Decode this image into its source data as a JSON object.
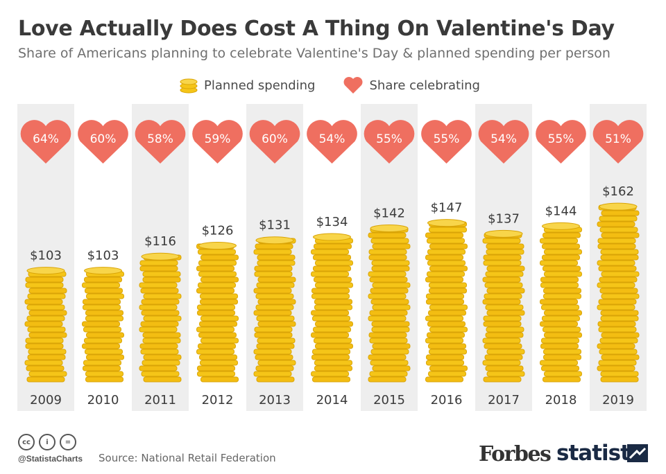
{
  "title": "Love Actually Does Cost A Thing On Valentine's Day",
  "subtitle": "Share of Americans planning to celebrate Valentine's Day & planned spending per person",
  "legend": {
    "spending_label": "Planned spending",
    "share_label": "Share celebrating"
  },
  "colors": {
    "coin": "#f5c518",
    "coin_edge": "#d9a406",
    "heart": "#ef6f60",
    "band": "#eeeeee",
    "text": "#3a3a3a"
  },
  "chart_data": {
    "type": "bar",
    "categories": [
      "2009",
      "2010",
      "2011",
      "2012",
      "2013",
      "2014",
      "2015",
      "2016",
      "2017",
      "2018",
      "2019"
    ],
    "series": [
      {
        "name": "Planned spending",
        "values": [
          103,
          103,
          116,
          126,
          131,
          134,
          142,
          147,
          137,
          144,
          162
        ],
        "value_labels": [
          "$103",
          "$103",
          "$116",
          "$126",
          "$131",
          "$134",
          "$142",
          "$147",
          "$137",
          "$144",
          "$162"
        ]
      },
      {
        "name": "Share celebrating",
        "values": [
          64,
          60,
          58,
          59,
          60,
          54,
          55,
          55,
          54,
          55,
          51
        ],
        "value_labels": [
          "64%",
          "60%",
          "58%",
          "59%",
          "60%",
          "54%",
          "55%",
          "55%",
          "54%",
          "55%",
          "51%"
        ]
      }
    ],
    "title": "Love Actually Does Cost A Thing On Valentine's Day",
    "subtitle": "Share of Americans planning to celebrate Valentine's Day & planned spending per person",
    "xlabel": "",
    "ylabel": "",
    "legend_position": "top",
    "grid": false
  },
  "footer": {
    "handle": "@StatistaCharts",
    "source": "Source: National Retail Federation",
    "forbes": "Forbes",
    "statista": "statista"
  },
  "icons": [
    "cc-icon",
    "by-icon",
    "nd-icon",
    "coin-stack-icon",
    "heart-icon",
    "statista-logo-icon"
  ]
}
